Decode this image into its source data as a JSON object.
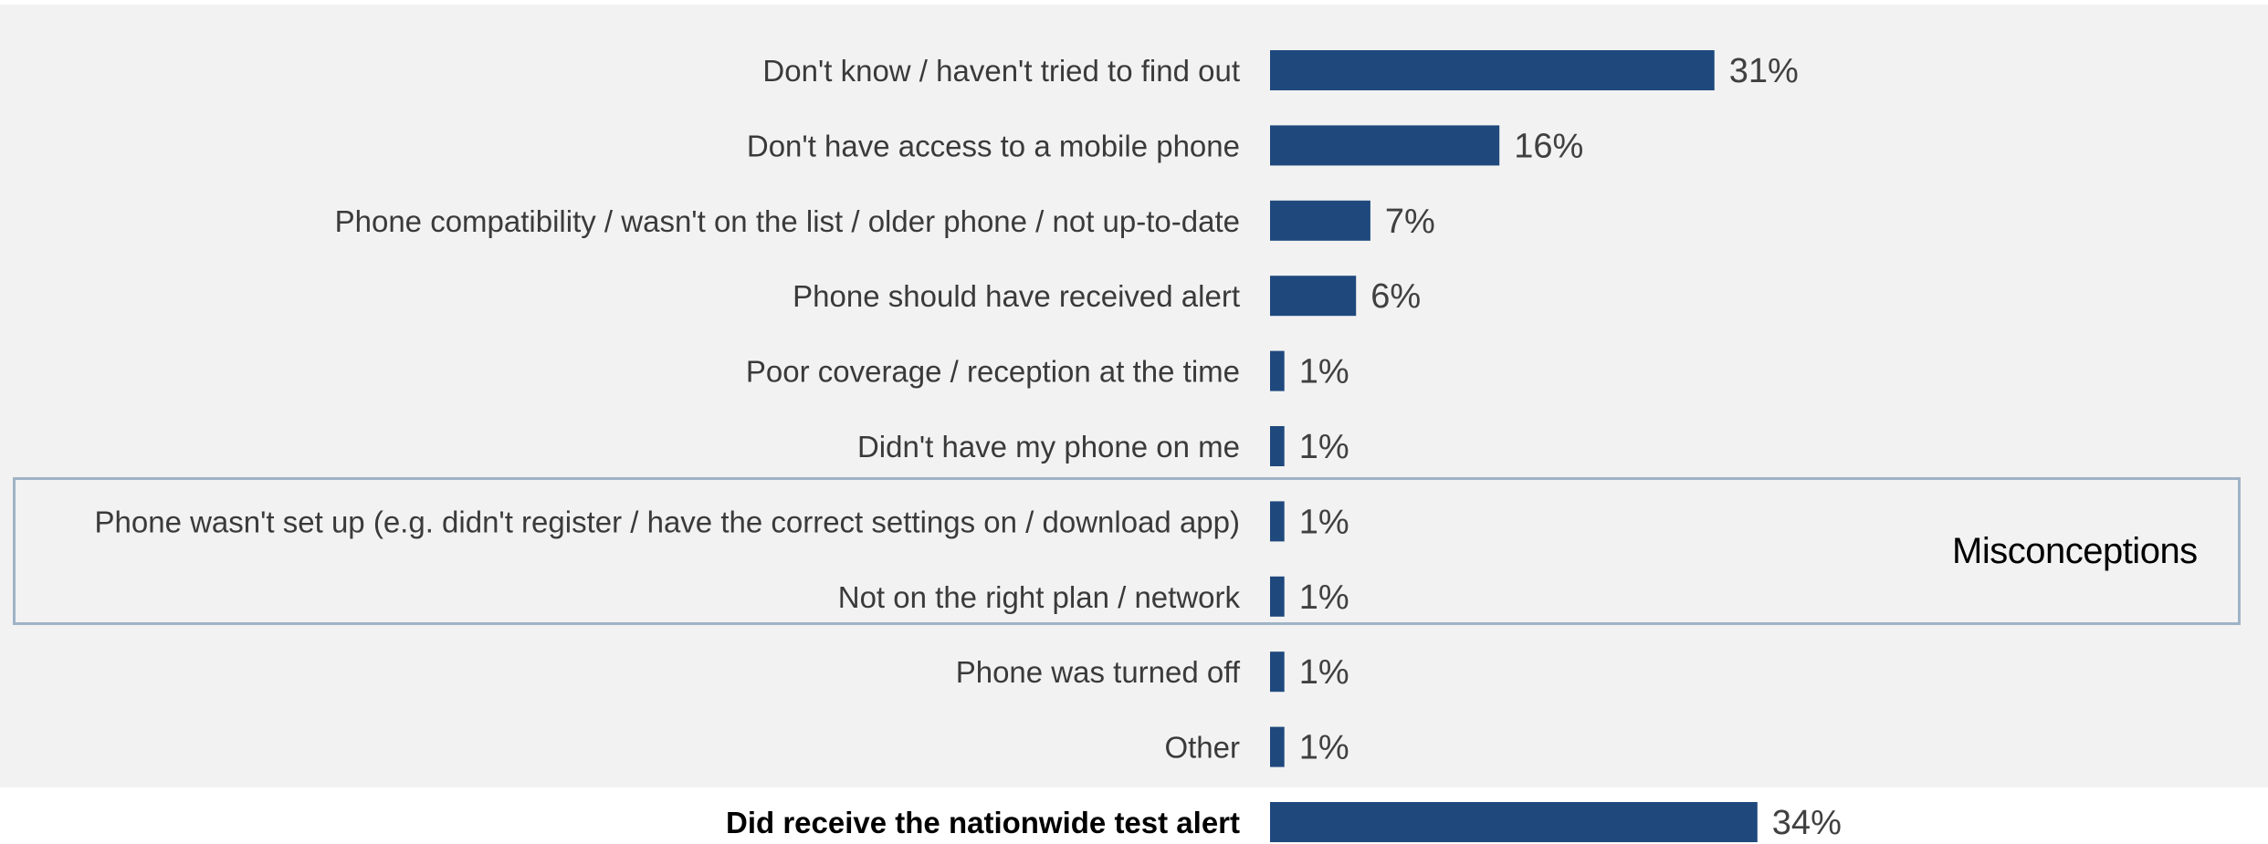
{
  "chart_data": {
    "type": "bar",
    "orientation": "horizontal",
    "categories": [
      "Don't know / haven't tried to find out",
      "Don't have access to a mobile phone",
      "Phone compatibility / wasn't on the list / older phone / not up-to-date",
      "Phone should have received alert",
      "Poor coverage / reception at the time",
      "Didn't have my phone on me",
      "Phone wasn't set up (e.g. didn't register / have the correct settings on / download app)",
      "Not on the right plan / network",
      "Phone was turned off",
      "Other",
      "Did receive the nationwide test alert"
    ],
    "values": [
      31,
      16,
      7,
      6,
      1,
      1,
      1,
      1,
      1,
      1,
      34
    ],
    "value_labels": [
      "31%",
      "16%",
      "7%",
      "6%",
      "1%",
      "1%",
      "1%",
      "1%",
      "1%",
      "1%",
      "34%"
    ],
    "bold_categories": [
      "Did receive the nationwide test alert"
    ],
    "bar_color": "#1f497d",
    "highlight_group": {
      "label": "Misconceptions",
      "categories": [
        "Phone wasn't set up (e.g. didn't register / have the correct settings on / download app)",
        "Not on the right plan / network"
      ]
    },
    "title": "",
    "xlabel": "",
    "ylabel": "",
    "xlim": [
      0,
      100
    ],
    "grid": false,
    "legend": "none"
  }
}
